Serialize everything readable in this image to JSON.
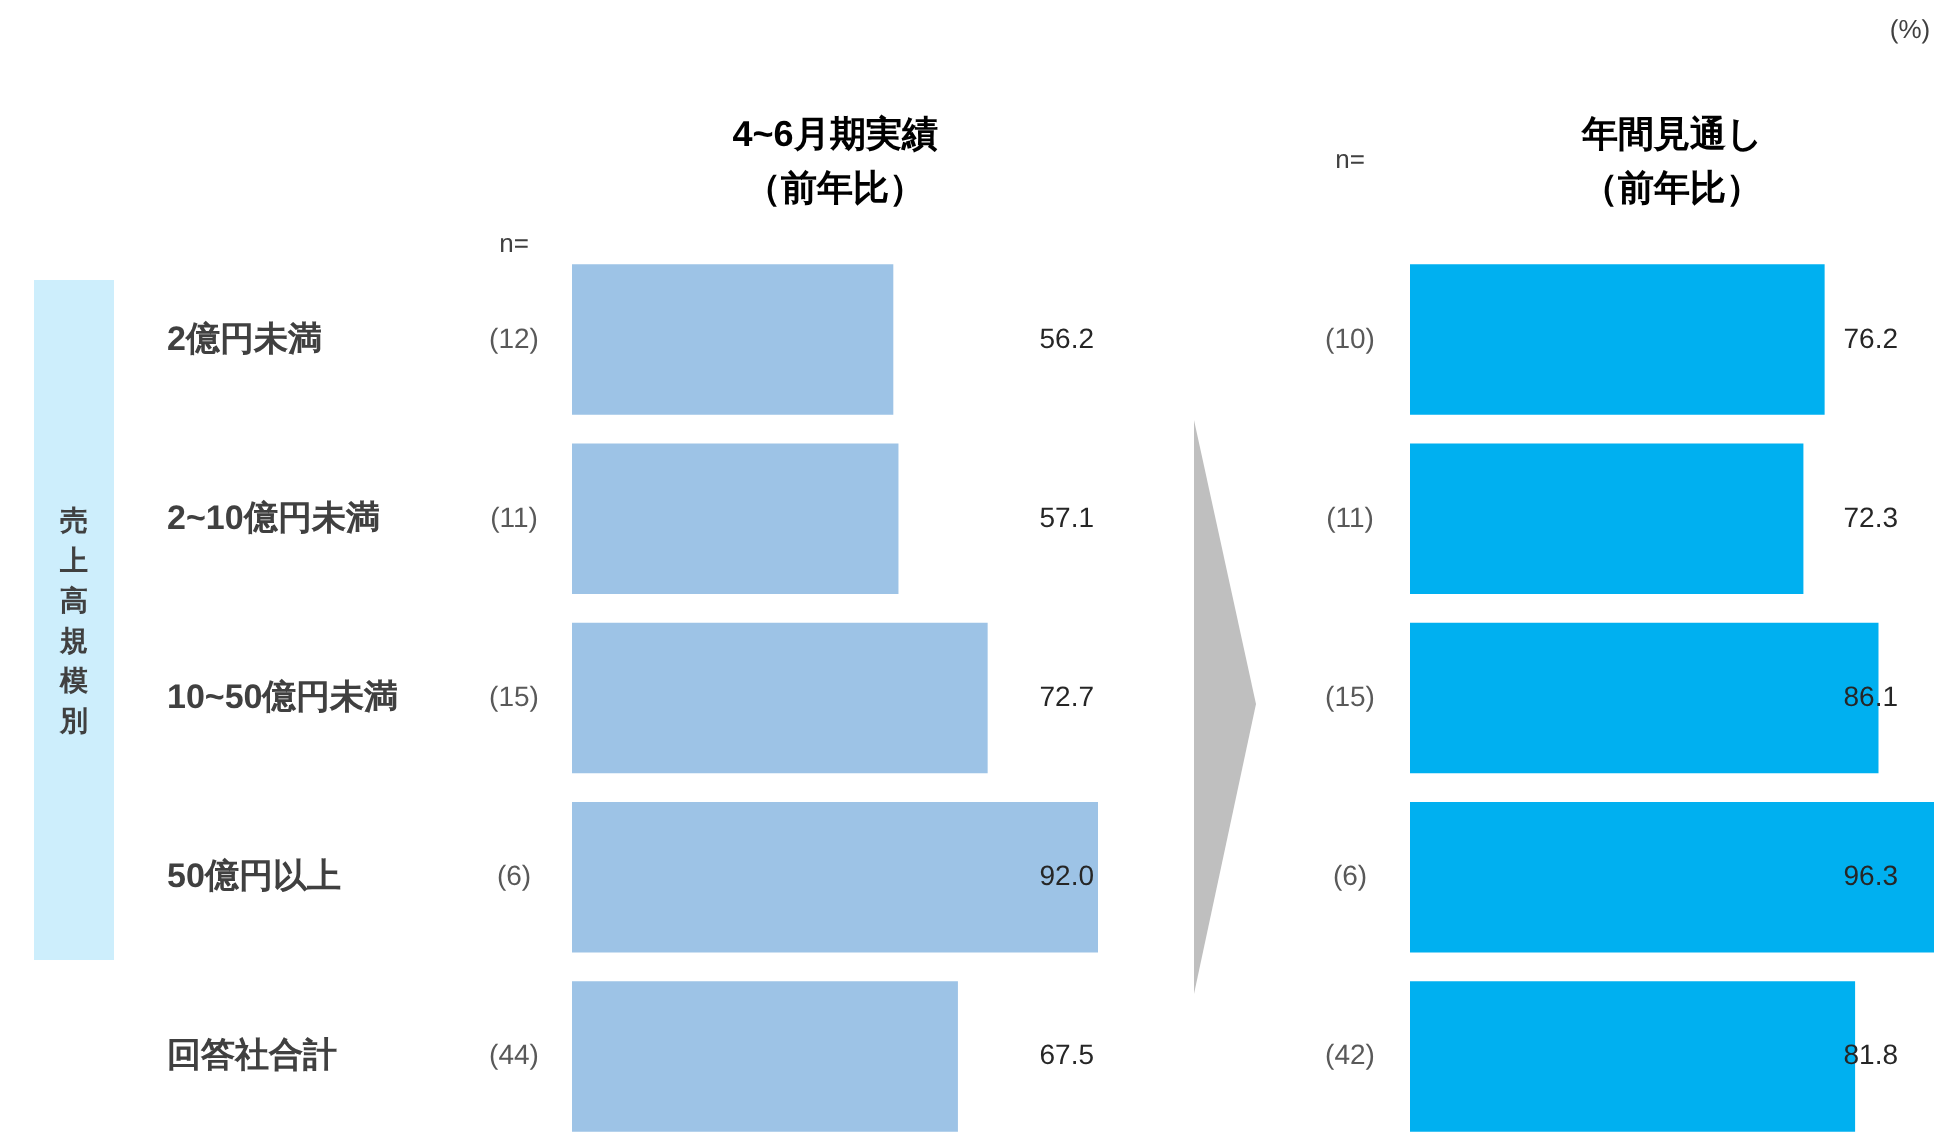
{
  "chart_data": [
    {
      "type": "bar",
      "orientation": "horizontal",
      "title": "4~6月期実績",
      "subtitle": "（前年比）",
      "ylabel": "売上高規模別",
      "tick_labels": "y",
      "categories": [
        "2億円未満",
        "2~10億円未満",
        "10~50億円未満",
        "50億円以上",
        "回答社合計"
      ],
      "series": [
        {
          "color": "#9dc3e6",
          "values": [
            56.2,
            57.1,
            72.7,
            92.0,
            67.5
          ],
          "value_labels": [
            "56.2",
            "57.1",
            "72.7",
            "92.0",
            "67.5"
          ]
        }
      ],
      "annotations": [
        "n=",
        "(12)",
        "(11)",
        "(15)",
        "(6)",
        "(44)"
      ]
    },
    {
      "type": "bar",
      "orientation": "horizontal",
      "title": "年間見通し",
      "subtitle": "（前年比）",
      "tick_labels": false,
      "categories": [
        null,
        null,
        null,
        null,
        null
      ],
      "series": [
        {
          "color": "#00b0f0",
          "values": [
            76.2,
            72.3,
            86.1,
            96.3,
            81.8
          ],
          "value_labels": [
            "76.2",
            "72.3",
            "86.1",
            "96.3",
            "81.8"
          ]
        }
      ],
      "annotations": [
        "n=",
        "(%)",
        "(10)",
        "(11)",
        "(15)",
        "(6)",
        "(42)"
      ]
    }
  ]
}
